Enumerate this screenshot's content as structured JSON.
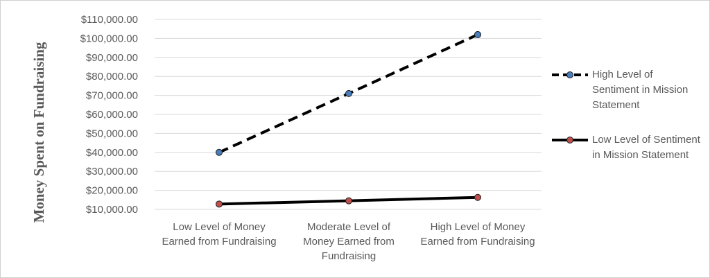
{
  "chart_data": {
    "type": "line",
    "ylabel": "Money Spent  on Fundraising",
    "xlabel": "",
    "categories": [
      [
        "Low Level of Money",
        "Earned from Fundraising"
      ],
      [
        "Moderate Level of",
        "Money Earned from",
        "Fundraising"
      ],
      [
        "High Level of Money",
        "Earned from Fundraising"
      ]
    ],
    "ylim": [
      10000,
      110000
    ],
    "yticks": [
      10000,
      20000,
      30000,
      40000,
      50000,
      60000,
      70000,
      80000,
      90000,
      100000,
      110000
    ],
    "ytick_labels": [
      "$10,000.00",
      "$20,000.00",
      "$30,000.00",
      "$40,000.00",
      "$50,000.00",
      "$60,000.00",
      "$70,000.00",
      "$80,000.00",
      "$90,000.00",
      "$100,000.00",
      "$110,000.00"
    ],
    "grid": true,
    "legend_position": "right",
    "series": [
      {
        "name": [
          "High Level of",
          "Sentiment in Mission",
          "Statement"
        ],
        "values": [
          40000,
          71000,
          102000
        ],
        "line_style": "dashed",
        "line_color": "#000000",
        "marker_color": "#4a7ebb"
      },
      {
        "name": [
          "Low Level of Sentiment",
          "in Mission Statement"
        ],
        "values": [
          12800,
          14500,
          16300
        ],
        "line_style": "solid",
        "line_color": "#000000",
        "marker_color": "#c0504d"
      }
    ]
  }
}
